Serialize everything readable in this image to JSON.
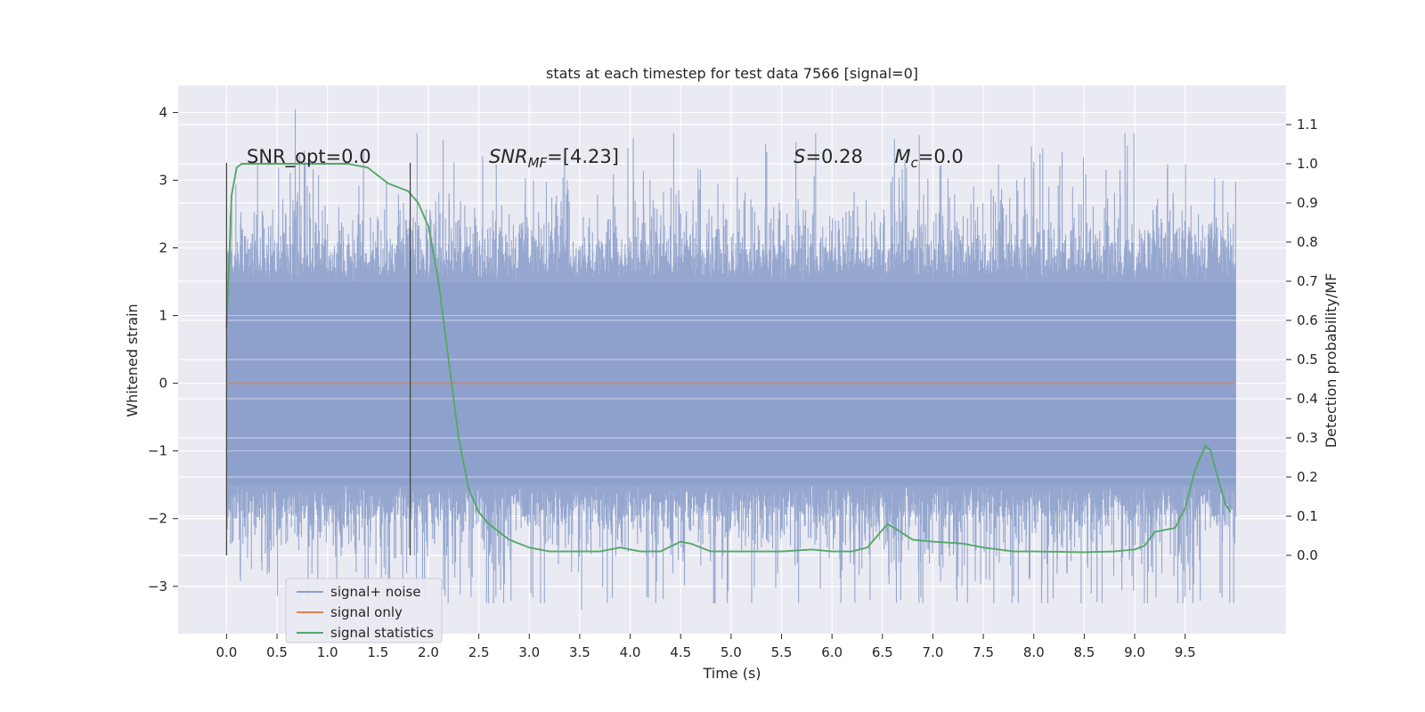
{
  "chart_data": {
    "type": "line",
    "title": "stats at each timestep for test data 7566 [signal=0]",
    "xlabel": "Time (s)",
    "ylabel_left": "Whitened strain",
    "ylabel_right": "Detection probability/MF",
    "xlim": [
      -0.48,
      10.5
    ],
    "ylim_left": [
      -3.7,
      4.4
    ],
    "ylim_right": [
      -0.2,
      1.2
    ],
    "x_ticks": [
      0.0,
      0.5,
      1.0,
      1.5,
      2.0,
      2.5,
      3.0,
      3.5,
      4.0,
      4.5,
      5.0,
      5.5,
      6.0,
      6.5,
      7.0,
      7.5,
      8.0,
      8.5,
      9.0,
      9.5
    ],
    "x_tick_labels": [
      "0.0",
      "0.5",
      "1.0",
      "1.5",
      "2.0",
      "2.5",
      "3.0",
      "3.5",
      "4.0",
      "4.5",
      "5.0",
      "5.5",
      "6.0",
      "6.5",
      "7.0",
      "7.5",
      "8.0",
      "8.5",
      "9.0",
      "9.5"
    ],
    "y_left_ticks": [
      -3,
      -2,
      -1,
      0,
      1,
      2,
      3,
      4
    ],
    "y_left_tick_labels": [
      "−3",
      "−2",
      "−1",
      "0",
      "1",
      "2",
      "3",
      "4"
    ],
    "y_right_ticks": [
      0.0,
      0.1,
      0.2,
      0.3,
      0.4,
      0.5,
      0.6,
      0.7,
      0.8,
      0.9,
      1.0,
      1.1
    ],
    "y_right_tick_labels": [
      "0.0",
      "0.1",
      "0.2",
      "0.3",
      "0.4",
      "0.5",
      "0.6",
      "0.7",
      "0.8",
      "0.9",
      "1.0",
      "1.1"
    ],
    "grid": true,
    "legend_position": "lower-left",
    "series": [
      {
        "name": "signal+ noise",
        "axis": "left",
        "color": "#8da0cb",
        "kind": "noise",
        "x_range": [
          0.0,
          10.0
        ],
        "core_amplitude": 1.5,
        "peak_max": 4.05,
        "peak_min": -3.35
      },
      {
        "name": "signal only",
        "axis": "left",
        "color": "#dd8452",
        "kind": "line",
        "x": [
          0.0,
          10.0
        ],
        "y": [
          0.0,
          0.0
        ]
      },
      {
        "name": "signal statistics",
        "axis": "right",
        "color": "#55a868",
        "kind": "line",
        "x": [
          0.0,
          0.05,
          0.1,
          0.15,
          0.2,
          0.3,
          0.5,
          0.8,
          1.0,
          1.2,
          1.4,
          1.5,
          1.6,
          1.7,
          1.8,
          1.9,
          2.0,
          2.1,
          2.2,
          2.3,
          2.4,
          2.5,
          2.6,
          2.8,
          3.0,
          3.2,
          3.5,
          3.7,
          3.9,
          4.1,
          4.3,
          4.5,
          4.6,
          4.8,
          5.0,
          5.5,
          5.8,
          6.0,
          6.2,
          6.35,
          6.45,
          6.55,
          6.65,
          6.8,
          7.0,
          7.3,
          7.5,
          7.8,
          8.0,
          8.5,
          8.8,
          9.0,
          9.1,
          9.2,
          9.3,
          9.4,
          9.5,
          9.6,
          9.7,
          9.75,
          9.8,
          9.9,
          9.95
        ],
        "y": [
          0.58,
          0.92,
          0.99,
          1.0,
          1.0,
          1.0,
          1.0,
          1.0,
          1.0,
          1.0,
          0.99,
          0.97,
          0.95,
          0.94,
          0.93,
          0.9,
          0.84,
          0.7,
          0.5,
          0.3,
          0.17,
          0.11,
          0.08,
          0.04,
          0.02,
          0.01,
          0.01,
          0.01,
          0.02,
          0.01,
          0.01,
          0.035,
          0.03,
          0.01,
          0.01,
          0.01,
          0.015,
          0.01,
          0.01,
          0.02,
          0.05,
          0.08,
          0.065,
          0.04,
          0.035,
          0.03,
          0.02,
          0.01,
          0.01,
          0.008,
          0.01,
          0.015,
          0.025,
          0.06,
          0.065,
          0.07,
          0.12,
          0.22,
          0.28,
          0.27,
          0.22,
          0.13,
          0.11
        ]
      }
    ],
    "vlines": [
      {
        "x": 0.0,
        "y_range_right": [
          0.0,
          1.0
        ]
      },
      {
        "x": 1.82,
        "y_range_right": [
          0.0,
          1.0
        ]
      }
    ],
    "annotations": [
      {
        "id": "snr-opt",
        "text": "SNR_opt=0.0",
        "x": 0.2,
        "y_right": 1.0
      },
      {
        "id": "snr-mf",
        "text": "SNR_MF=[4.23]",
        "x": 2.6,
        "y_right": 1.0
      },
      {
        "id": "s-stat",
        "text": "S=0.28",
        "x": 5.62,
        "y_right": 1.0
      },
      {
        "id": "mc",
        "text": "M_c=0.0",
        "x": 6.62,
        "y_right": 1.0
      }
    ]
  }
}
